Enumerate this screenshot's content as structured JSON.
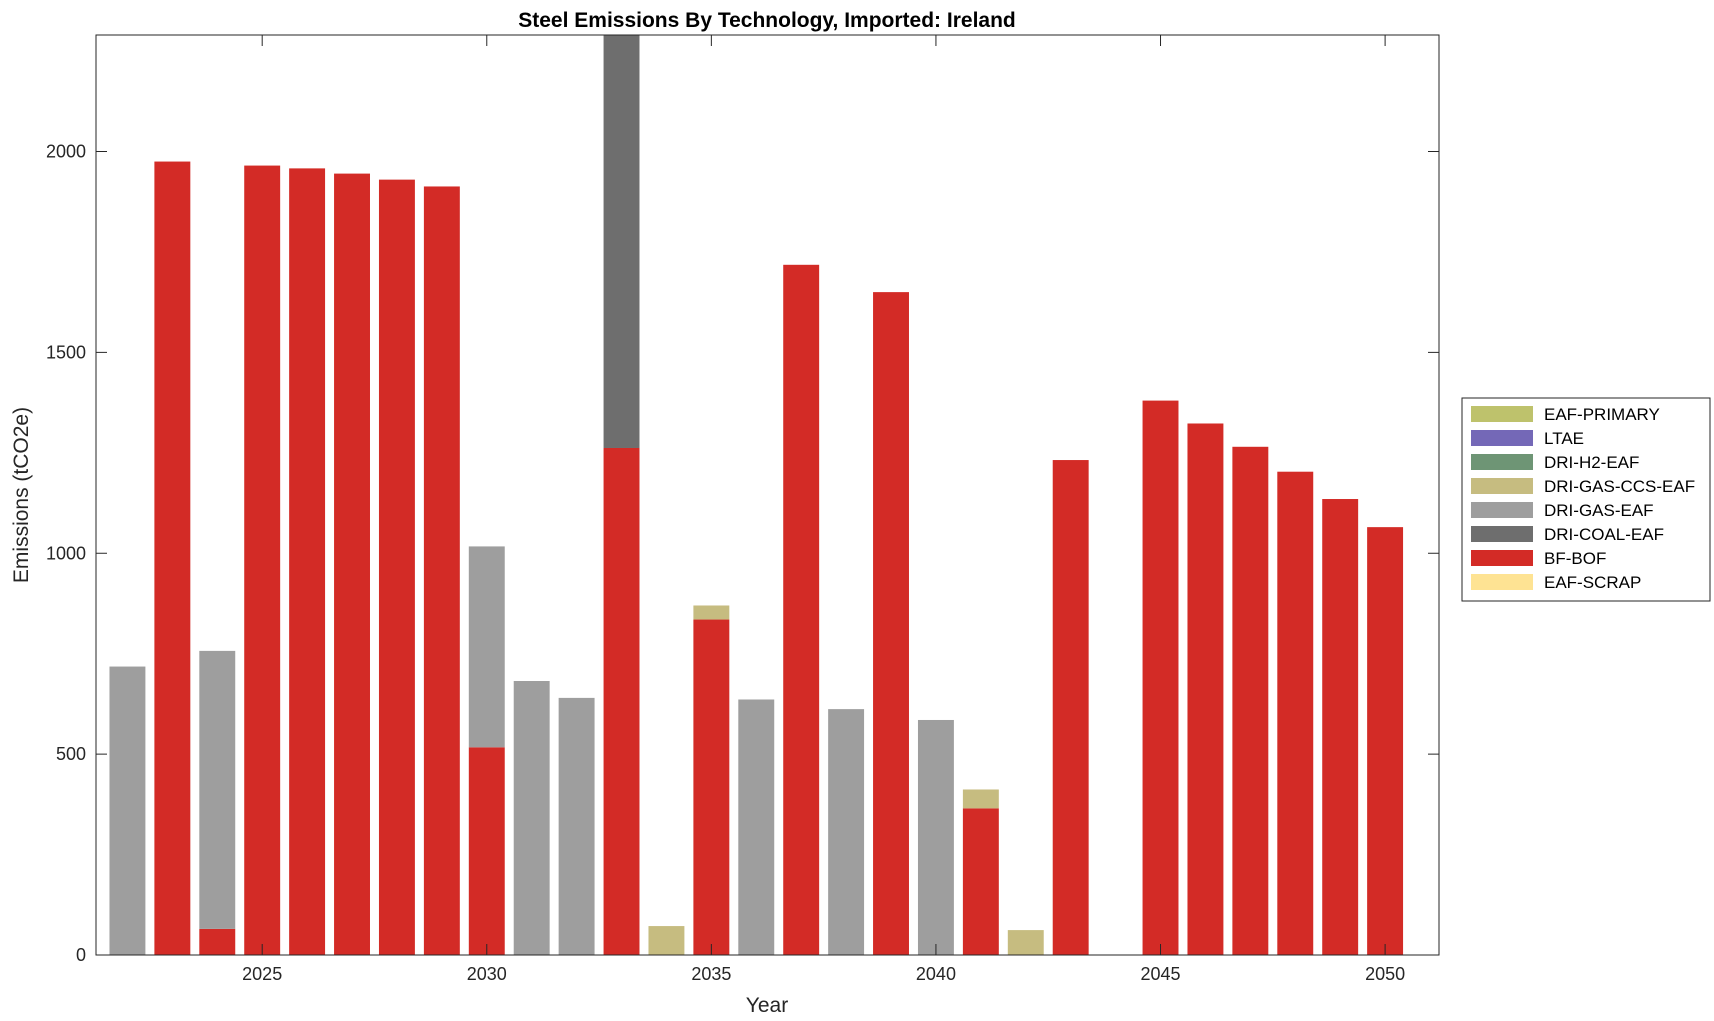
{
  "chart_data": {
    "type": "bar",
    "stacked": true,
    "title": "Steel Emissions By Technology, Imported: Ireland",
    "xlabel": "Year",
    "ylabel": "Emissions (tCO2e)",
    "xlim": [
      2021.3,
      2051.2
    ],
    "ylim": [
      0,
      2290
    ],
    "xticks": [
      2025,
      2030,
      2035,
      2040,
      2045,
      2050
    ],
    "yticks": [
      0,
      500,
      1000,
      1500,
      2000
    ],
    "legend_position": "right",
    "box": true,
    "categories": [
      2022,
      2023,
      2024,
      2025,
      2026,
      2027,
      2028,
      2029,
      2030,
      2031,
      2032,
      2033,
      2034,
      2035,
      2036,
      2037,
      2038,
      2039,
      2040,
      2041,
      2042,
      2043,
      2044,
      2045,
      2046,
      2047,
      2048,
      2049,
      2050
    ],
    "series": [
      {
        "name": "EAF-SCRAP",
        "color": "#FEE393",
        "values": [
          0,
          0,
          0,
          0,
          0,
          0,
          0,
          0,
          0,
          0,
          0,
          0,
          0,
          0,
          0,
          0,
          0,
          0,
          0,
          0,
          0,
          0,
          0,
          0,
          0,
          0,
          0,
          0,
          0
        ]
      },
      {
        "name": "BF-BOF",
        "color": "#D32B26",
        "values": [
          0,
          1975,
          65,
          1965,
          1958,
          1945,
          1930,
          1913,
          517,
          0,
          0,
          1262,
          0,
          835,
          0,
          1718,
          0,
          1650,
          0,
          365,
          0,
          1232,
          0,
          1380,
          1323,
          1265,
          1203,
          1135,
          1065
        ]
      },
      {
        "name": "DRI-COAL-EAF",
        "color": "#6E6E6E",
        "values": [
          0,
          0,
          0,
          0,
          0,
          0,
          0,
          0,
          0,
          0,
          0,
          1100,
          0,
          0,
          0,
          0,
          0,
          0,
          0,
          0,
          0,
          0,
          0,
          0,
          0,
          0,
          0,
          0,
          0
        ]
      },
      {
        "name": "DRI-GAS-EAF",
        "color": "#9E9E9E",
        "values": [
          718,
          0,
          692,
          0,
          0,
          0,
          0,
          0,
          500,
          682,
          640,
          0,
          0,
          0,
          636,
          0,
          612,
          0,
          585,
          0,
          0,
          0,
          0,
          0,
          0,
          0,
          0,
          0,
          0
        ]
      },
      {
        "name": "DRI-GAS-CCS-EAF",
        "color": "#C6BC80",
        "values": [
          0,
          0,
          0,
          0,
          0,
          0,
          0,
          0,
          0,
          0,
          0,
          0,
          72,
          35,
          0,
          0,
          0,
          0,
          0,
          47,
          62,
          0,
          0,
          0,
          0,
          0,
          0,
          0,
          0
        ]
      },
      {
        "name": "DRI-H2-EAF",
        "color": "#6E9575",
        "values": [
          0,
          0,
          0,
          0,
          0,
          0,
          0,
          0,
          0,
          0,
          0,
          0,
          0,
          0,
          0,
          0,
          0,
          0,
          0,
          0,
          0,
          0,
          0,
          0,
          0,
          0,
          0,
          0,
          0
        ]
      },
      {
        "name": "LTAE",
        "color": "#7468B7",
        "values": [
          0,
          0,
          0,
          0,
          0,
          0,
          0,
          0,
          0,
          0,
          0,
          0,
          0,
          0,
          0,
          0,
          0,
          0,
          0,
          0,
          0,
          0,
          0,
          0,
          0,
          0,
          0,
          0,
          0
        ]
      },
      {
        "name": "EAF-PRIMARY",
        "color": "#BEC26C",
        "values": [
          0,
          0,
          0,
          0,
          0,
          0,
          0,
          0,
          0,
          0,
          0,
          0,
          0,
          0,
          0,
          0,
          0,
          0,
          0,
          0,
          0,
          0,
          0,
          0,
          0,
          0,
          0,
          0,
          0
        ]
      }
    ],
    "legend_order": [
      "EAF-PRIMARY",
      "LTAE",
      "DRI-H2-EAF",
      "DRI-GAS-CCS-EAF",
      "DRI-GAS-EAF",
      "DRI-COAL-EAF",
      "BF-BOF",
      "EAF-SCRAP"
    ]
  }
}
